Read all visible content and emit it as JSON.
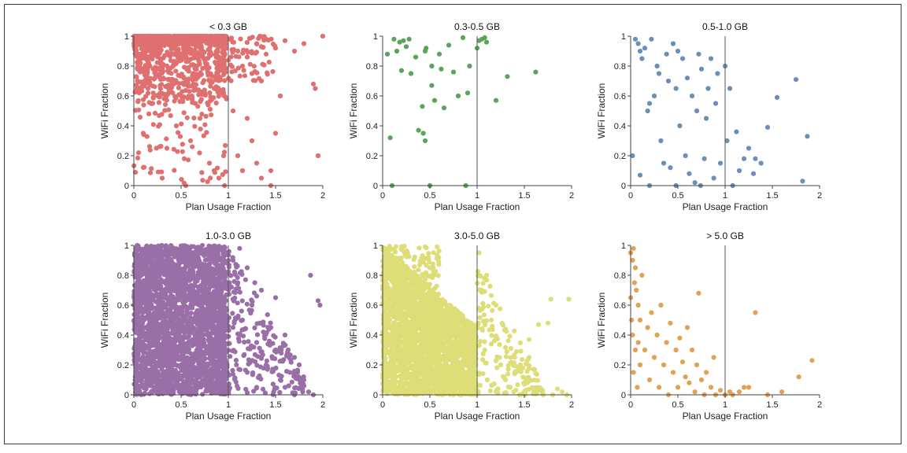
{
  "figure": {
    "x_label": "Plan Usage Fraction",
    "y_label": "WiFi Fraction",
    "x_ticks": [
      "0",
      "0.5",
      "1",
      "1.5",
      "2"
    ],
    "y_ticks": [
      "0",
      "0.2",
      "0.4",
      "0.6",
      "0.8",
      "1"
    ]
  },
  "chart_data": [
    {
      "type": "scatter",
      "title": "< 0.3 GB",
      "xlabel": "Plan Usage Fraction",
      "ylabel": "WiFi Fraction",
      "xlim": [
        0,
        2
      ],
      "ylim": [
        0,
        1
      ],
      "reference_line_x": 1,
      "color": "#e07070",
      "density": "very high",
      "points": [
        [
          0.05,
          0.98
        ],
        [
          0.1,
          0.99
        ],
        [
          0.2,
          0.97
        ],
        [
          0.3,
          0.95
        ],
        [
          0.4,
          0.93
        ],
        [
          0.5,
          0.96
        ],
        [
          0.6,
          0.9
        ],
        [
          0.7,
          0.92
        ],
        [
          0.8,
          0.88
        ],
        [
          0.9,
          0.85
        ],
        [
          1.02,
          0.98
        ],
        [
          1.1,
          0.9
        ],
        [
          1.15,
          0.8
        ],
        [
          1.2,
          0.86
        ],
        [
          1.25,
          0.75
        ],
        [
          1.3,
          0.95
        ],
        [
          1.35,
          0.7
        ],
        [
          1.4,
          0.88
        ],
        [
          1.5,
          0.92
        ],
        [
          1.55,
          0.6
        ],
        [
          1.6,
          0.97
        ],
        [
          1.7,
          0.9
        ],
        [
          1.8,
          0.95
        ],
        [
          1.9,
          0.68
        ],
        [
          1.92,
          0.65
        ],
        [
          1.95,
          0.2
        ],
        [
          2.0,
          1.0
        ],
        [
          0.05,
          0.22
        ],
        [
          0.1,
          0.35
        ],
        [
          0.2,
          0.55
        ],
        [
          0.3,
          0.05
        ],
        [
          0.35,
          0.25
        ],
        [
          0.45,
          0.4
        ],
        [
          0.55,
          0.0
        ],
        [
          0.6,
          0.3
        ],
        [
          0.7,
          0.45
        ],
        [
          0.8,
          0.15
        ],
        [
          0.85,
          0.1
        ],
        [
          0.9,
          0.05
        ],
        [
          0.95,
          0.2
        ],
        [
          0.96,
          0.0
        ],
        [
          1.05,
          0.5
        ],
        [
          1.1,
          0.2
        ],
        [
          1.15,
          0.1
        ],
        [
          1.2,
          0.45
        ],
        [
          1.25,
          0.3
        ],
        [
          1.3,
          0.15
        ],
        [
          1.35,
          0.05
        ],
        [
          1.45,
          0.1
        ],
        [
          1.5,
          0.35
        ],
        [
          1.45,
          0.0
        ],
        [
          0.15,
          0.65
        ],
        [
          0.25,
          0.78
        ],
        [
          0.4,
          0.7
        ],
        [
          0.5,
          0.6
        ],
        [
          0.65,
          0.55
        ],
        [
          0.75,
          0.62
        ],
        [
          0.9,
          0.72
        ],
        [
          0.98,
          0.58
        ]
      ]
    },
    {
      "type": "scatter",
      "title": "0.3-0.5 GB",
      "xlabel": "Plan Usage Fraction",
      "ylabel": "WiFi Fraction",
      "xlim": [
        0,
        2
      ],
      "ylim": [
        0,
        1
      ],
      "reference_line_x": 1,
      "color": "#5aa55a",
      "density": "sparse",
      "points": [
        [
          0.05,
          0.88
        ],
        [
          0.08,
          0.32
        ],
        [
          0.1,
          0.0
        ],
        [
          0.12,
          0.98
        ],
        [
          0.15,
          0.9
        ],
        [
          0.18,
          0.96
        ],
        [
          0.2,
          0.77
        ],
        [
          0.22,
          0.97
        ],
        [
          0.25,
          0.93
        ],
        [
          0.28,
          0.98
        ],
        [
          0.3,
          0.75
        ],
        [
          0.35,
          0.86
        ],
        [
          0.38,
          0.37
        ],
        [
          0.42,
          0.53
        ],
        [
          0.43,
          0.35
        ],
        [
          0.45,
          0.3
        ],
        [
          0.45,
          0.9
        ],
        [
          0.46,
          0.92
        ],
        [
          0.5,
          0.0
        ],
        [
          0.52,
          0.8
        ],
        [
          0.52,
          0.67
        ],
        [
          0.55,
          0.57
        ],
        [
          0.6,
          0.88
        ],
        [
          0.62,
          0.78
        ],
        [
          0.65,
          0.52
        ],
        [
          0.7,
          0.94
        ],
        [
          0.75,
          0.76
        ],
        [
          0.8,
          0.6
        ],
        [
          0.85,
          0.99
        ],
        [
          0.88,
          0.0
        ],
        [
          0.9,
          0.62
        ],
        [
          0.92,
          0.8
        ],
        [
          1.0,
          0.92
        ],
        [
          1.02,
          0.97
        ],
        [
          1.05,
          0.98
        ],
        [
          1.08,
          0.99
        ],
        [
          1.1,
          0.96
        ],
        [
          1.2,
          0.57
        ],
        [
          1.32,
          0.73
        ],
        [
          1.62,
          0.76
        ]
      ]
    },
    {
      "type": "scatter",
      "title": "0.5-1.0 GB",
      "xlabel": "Plan Usage Fraction",
      "ylabel": "WiFi Fraction",
      "xlim": [
        0,
        2
      ],
      "ylim": [
        0,
        1
      ],
      "reference_line_x": 1,
      "color": "#6990b8",
      "density": "moderate",
      "points": [
        [
          0.02,
          0.2
        ],
        [
          0.05,
          0.98
        ],
        [
          0.08,
          0.95
        ],
        [
          0.1,
          0.9
        ],
        [
          0.12,
          0.85
        ],
        [
          0.15,
          0.92
        ],
        [
          0.18,
          0.5
        ],
        [
          0.2,
          0.55
        ],
        [
          0.22,
          0.98
        ],
        [
          0.25,
          0.6
        ],
        [
          0.28,
          0.8
        ],
        [
          0.3,
          0.75
        ],
        [
          0.32,
          0.3
        ],
        [
          0.35,
          0.15
        ],
        [
          0.38,
          0.88
        ],
        [
          0.4,
          0.7
        ],
        [
          0.42,
          0.12
        ],
        [
          0.45,
          0.95
        ],
        [
          0.48,
          0.65
        ],
        [
          0.5,
          0.9
        ],
        [
          0.52,
          0.4
        ],
        [
          0.55,
          0.85
        ],
        [
          0.58,
          0.2
        ],
        [
          0.6,
          0.72
        ],
        [
          0.62,
          0.08
        ],
        [
          0.65,
          0.6
        ],
        [
          0.68,
          0.02
        ],
        [
          0.7,
          0.5
        ],
        [
          0.72,
          0.88
        ],
        [
          0.75,
          0.78
        ],
        [
          0.78,
          0.18
        ],
        [
          0.8,
          0.45
        ],
        [
          0.82,
          0.65
        ],
        [
          0.85,
          0.85
        ],
        [
          0.88,
          0.05
        ],
        [
          0.9,
          0.55
        ],
        [
          0.92,
          0.75
        ],
        [
          0.95,
          0.15
        ],
        [
          1.0,
          0.8
        ],
        [
          1.02,
          0.3
        ],
        [
          1.05,
          0.65
        ],
        [
          1.08,
          0.0
        ],
        [
          1.12,
          0.36
        ],
        [
          1.15,
          0.1
        ],
        [
          1.2,
          0.18
        ],
        [
          1.25,
          0.25
        ],
        [
          1.3,
          0.08
        ],
        [
          1.32,
          0.18
        ],
        [
          1.38,
          0.15
        ],
        [
          1.45,
          0.39
        ],
        [
          1.55,
          0.59
        ],
        [
          1.75,
          0.71
        ],
        [
          1.82,
          0.03
        ],
        [
          1.87,
          0.33
        ],
        [
          0.1,
          0.07
        ],
        [
          0.2,
          0.0
        ],
        [
          0.48,
          0.0
        ],
        [
          0.74,
          0.0
        ]
      ]
    },
    {
      "type": "scatter",
      "title": "1.0-3.0 GB",
      "xlabel": "Plan Usage Fraction",
      "ylabel": "WiFi Fraction",
      "xlim": [
        0,
        2
      ],
      "ylim": [
        0,
        1
      ],
      "reference_line_x": 1,
      "color": "#9a6fa8",
      "density": "very high",
      "points": [
        [
          1.05,
          0.9
        ],
        [
          1.1,
          0.75
        ],
        [
          1.15,
          0.5
        ],
        [
          1.2,
          0.85
        ],
        [
          1.25,
          0.6
        ],
        [
          1.3,
          0.35
        ],
        [
          1.35,
          0.7
        ],
        [
          1.4,
          0.2
        ],
        [
          1.45,
          0.45
        ],
        [
          1.5,
          0.3
        ],
        [
          1.55,
          0.1
        ],
        [
          1.6,
          0.05
        ],
        [
          1.65,
          0.15
        ],
        [
          1.7,
          0.0
        ],
        [
          1.75,
          0.2
        ],
        [
          1.8,
          0.06
        ],
        [
          1.85,
          0.02
        ],
        [
          1.9,
          0.0
        ],
        [
          1.95,
          0.63
        ],
        [
          1.97,
          0.6
        ],
        [
          1.87,
          0.8
        ],
        [
          1.5,
          0.65
        ],
        [
          1.42,
          0.34
        ],
        [
          1.28,
          0.75
        ],
        [
          1.12,
          0.98
        ],
        [
          1.6,
          0.4
        ],
        [
          1.2,
          0.15
        ],
        [
          1.3,
          0.05
        ],
        [
          1.48,
          0.02
        ],
        [
          1.62,
          0.27
        ],
        [
          1.7,
          0.25
        ]
      ]
    },
    {
      "type": "scatter",
      "title": "3.0-5.0 GB",
      "xlabel": "Plan Usage Fraction",
      "ylabel": "WiFi Fraction",
      "xlim": [
        0,
        2
      ],
      "ylim": [
        0,
        1
      ],
      "reference_line_x": 1,
      "color": "#dede78",
      "density": "very high",
      "points": [
        [
          1.02,
          0.95
        ],
        [
          1.05,
          0.7
        ],
        [
          1.1,
          0.8
        ],
        [
          1.15,
          0.5
        ],
        [
          1.2,
          0.38
        ],
        [
          1.25,
          0.2
        ],
        [
          1.3,
          0.1
        ],
        [
          1.35,
          0.05
        ],
        [
          1.4,
          0.15
        ],
        [
          1.45,
          0.0
        ],
        [
          1.5,
          0.07
        ],
        [
          1.55,
          0.25
        ],
        [
          1.6,
          0.02
        ],
        [
          1.65,
          0.05
        ],
        [
          1.7,
          0.0
        ],
        [
          1.75,
          0.48
        ],
        [
          1.8,
          0.0
        ],
        [
          1.85,
          0.04
        ],
        [
          1.9,
          0.02
        ],
        [
          1.95,
          0.0
        ],
        [
          1.97,
          0.64
        ],
        [
          1.78,
          0.64
        ],
        [
          1.65,
          0.47
        ],
        [
          1.2,
          0.6
        ],
        [
          1.15,
          0.34
        ],
        [
          1.3,
          0.44
        ],
        [
          1.22,
          0.04
        ],
        [
          1.55,
          0.37
        ]
      ]
    },
    {
      "type": "scatter",
      "title": "> 5.0 GB",
      "xlabel": "Plan Usage Fraction",
      "ylabel": "WiFi Fraction",
      "xlim": [
        0,
        2
      ],
      "ylim": [
        0,
        1
      ],
      "reference_line_x": 1,
      "color": "#e0a355",
      "density": "moderate",
      "points": [
        [
          0.0,
          0.95
        ],
        [
          0.02,
          0.9
        ],
        [
          0.03,
          0.98
        ],
        [
          0.05,
          0.85
        ],
        [
          0.06,
          0.7
        ],
        [
          0.08,
          0.6
        ],
        [
          0.1,
          0.5
        ],
        [
          0.12,
          0.8
        ],
        [
          0.15,
          0.3
        ],
        [
          0.18,
          0.45
        ],
        [
          0.2,
          0.1
        ],
        [
          0.22,
          0.55
        ],
        [
          0.25,
          0.25
        ],
        [
          0.28,
          0.4
        ],
        [
          0.3,
          0.05
        ],
        [
          0.32,
          0.6
        ],
        [
          0.35,
          0.2
        ],
        [
          0.38,
          0.35
        ],
        [
          0.4,
          0.0
        ],
        [
          0.42,
          0.48
        ],
        [
          0.45,
          0.15
        ],
        [
          0.48,
          0.3
        ],
        [
          0.5,
          0.05
        ],
        [
          0.52,
          0.38
        ],
        [
          0.55,
          0.22
        ],
        [
          0.58,
          0.12
        ],
        [
          0.6,
          0.45
        ],
        [
          0.62,
          0.08
        ],
        [
          0.65,
          0.3
        ],
        [
          0.68,
          0.02
        ],
        [
          0.7,
          0.2
        ],
        [
          0.72,
          0.68
        ],
        [
          0.75,
          0.1
        ],
        [
          0.78,
          0.0
        ],
        [
          0.8,
          0.15
        ],
        [
          0.85,
          0.05
        ],
        [
          0.88,
          0.25
        ],
        [
          0.9,
          0.0
        ],
        [
          0.95,
          0.03
        ],
        [
          1.0,
          0.0
        ],
        [
          1.05,
          0.02
        ],
        [
          1.08,
          0.0
        ],
        [
          1.15,
          0.02
        ],
        [
          1.2,
          0.05
        ],
        [
          1.25,
          0.05
        ],
        [
          1.32,
          0.55
        ],
        [
          1.45,
          0.0
        ],
        [
          1.6,
          0.02
        ],
        [
          1.78,
          0.12
        ],
        [
          1.92,
          0.23
        ],
        [
          0.02,
          0.4
        ],
        [
          0.05,
          0.3
        ],
        [
          0.03,
          0.15
        ],
        [
          0.07,
          0.05
        ],
        [
          0.1,
          0.2
        ],
        [
          0.08,
          0.35
        ],
        [
          0.0,
          0.65
        ],
        [
          0.01,
          0.5
        ],
        [
          0.04,
          0.75
        ]
      ]
    }
  ]
}
